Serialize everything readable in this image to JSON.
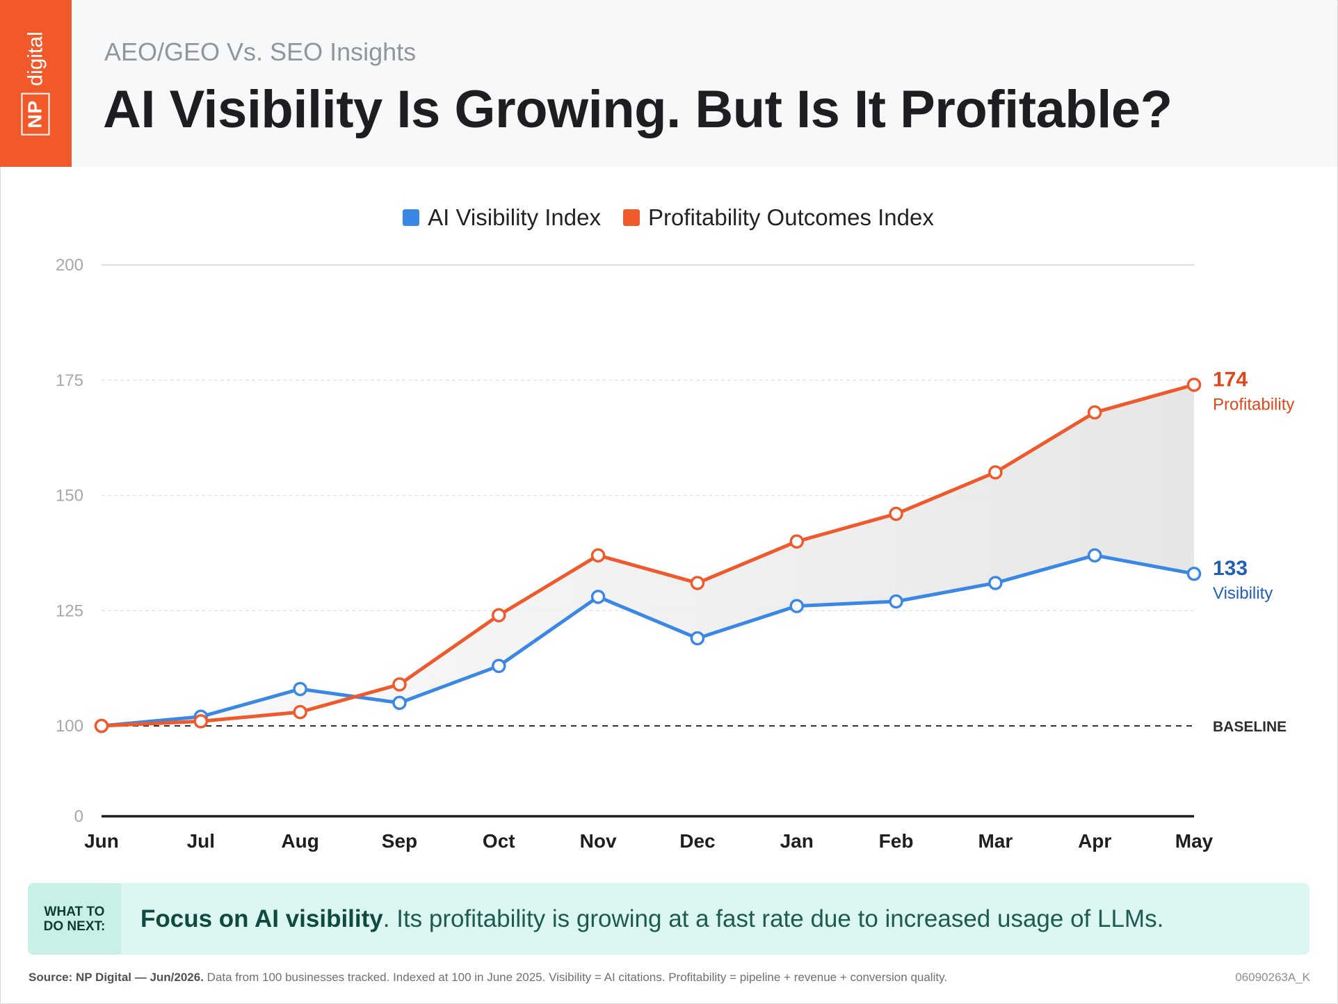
{
  "header": {
    "subtitle": "AEO/GEO Vs. SEO Insights",
    "title": "AI Visibility Is Growing. But Is It Profitable?",
    "logo_np": "NP",
    "logo_digital": "digital"
  },
  "colors": {
    "brand": "#f1592a",
    "visibility": "#3b87e4",
    "profitability": "#ee5a2c",
    "visibility_label": "#1f5fb5",
    "profitability_label": "#e0471a"
  },
  "chart_data": {
    "type": "line",
    "categories": [
      "Jun",
      "Jul",
      "Aug",
      "Sep",
      "Oct",
      "Nov",
      "Dec",
      "Jan",
      "Feb",
      "Mar",
      "Apr",
      "May"
    ],
    "series": [
      {
        "name": "AI Visibility Index",
        "values": [
          100,
          102,
          108,
          105,
          113,
          128,
          119,
          126,
          127,
          131,
          137,
          133
        ],
        "end_value": "133",
        "end_label": "Visibility"
      },
      {
        "name": "Profitability Outcomes Index",
        "values": [
          100,
          101,
          103,
          109,
          124,
          137,
          131,
          140,
          146,
          155,
          168,
          174
        ],
        "end_value": "174",
        "end_label": "Profitability"
      }
    ],
    "y_ticks": [
      0,
      100,
      125,
      150,
      175,
      200
    ],
    "ylim": [
      0,
      200
    ],
    "baseline_value": 100,
    "baseline_label": "BASELINE",
    "legend_position": "top-center",
    "gridlines": true
  },
  "callout": {
    "tag": "WHAT TO\nDO NEXT:",
    "bold": "Focus on AI visibility",
    "text": ". Its profitability is growing at a fast rate due to increased usage of LLMs."
  },
  "footer": {
    "source_bold": "Source: NP Digital — Jun/2026.",
    "source_text": " Data from 100 businesses tracked. Indexed at 100 in June 2025. Visibility = AI citations. Profitability = pipeline + revenue + conversion quality.",
    "code": "06090263A_K"
  }
}
